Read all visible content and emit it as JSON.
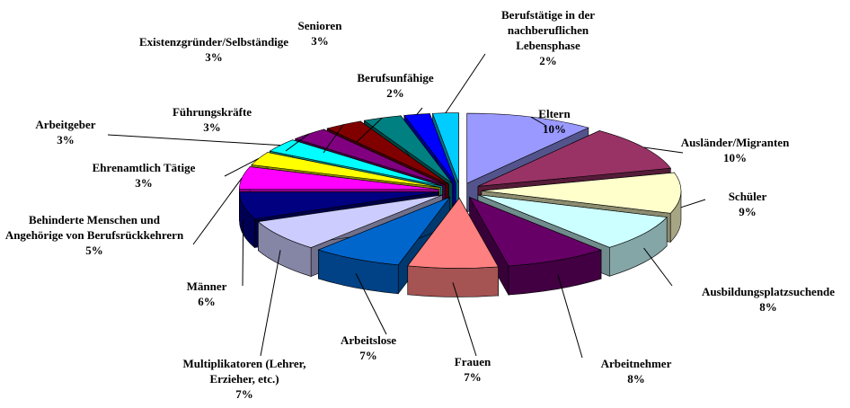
{
  "chart_data": {
    "type": "pie",
    "categories": [
      "Eltern",
      "Ausländer/Migranten",
      "Schüler",
      "Ausbildungsplatzsuchende",
      "Arbeitnehmer",
      "Frauen",
      "Arbeitslose",
      "Multiplikatoren (Lehrer, Erzieher, etc.)",
      "Männer",
      "Behinderte Menschen und Angehörige von Berufsrückkehrern",
      "Ehrenamtlich Tätige",
      "Arbeitgeber",
      "Führungskräfte",
      "Existenzgründer/Selbständige",
      "Senioren",
      "Berufsunfähige",
      "Berufstätige in der nachberuflichen Lebensphase"
    ],
    "values": [
      10,
      10,
      9,
      8,
      8,
      7,
      7,
      7,
      6,
      5,
      3,
      3,
      3,
      3,
      3,
      2,
      2
    ],
    "value_labels": [
      "10%",
      "10%",
      "9%",
      "8%",
      "8%",
      "7%",
      "7%",
      "7%",
      "6%",
      "5%",
      "3%",
      "3%",
      "3%",
      "3%",
      "3%",
      "2%",
      "2%"
    ],
    "colors": [
      "#9999ff",
      "#993366",
      "#ffffcc",
      "#ccffff",
      "#660066",
      "#ff8080",
      "#0066cc",
      "#ccccff",
      "#000080",
      "#ff00ff",
      "#ffff00",
      "#00ffff",
      "#800080",
      "#800000",
      "#008080",
      "#0000ff",
      "#00ccff"
    ]
  }
}
